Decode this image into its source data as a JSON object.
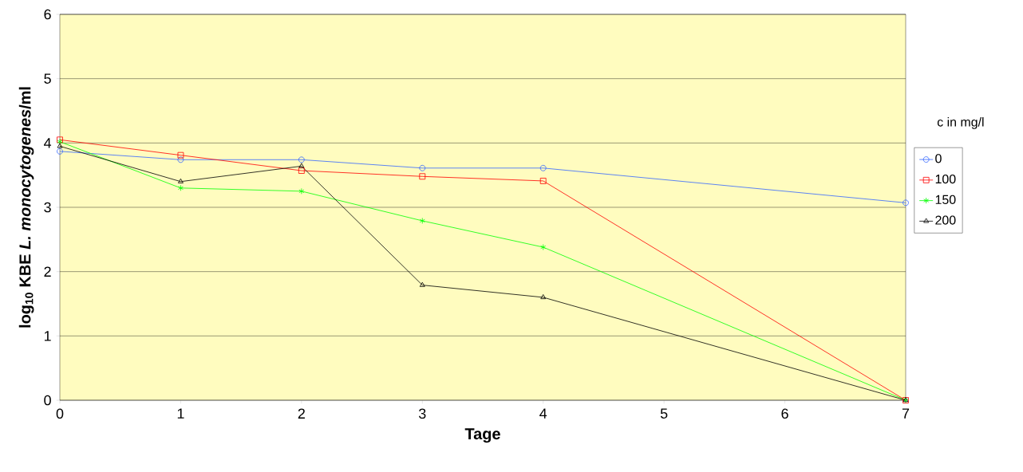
{
  "chart_data": {
    "type": "line",
    "xlabel": "Tage",
    "ylabel": "log$_{10}$ KBE *L. monocytogenes*/ml",
    "legend_title": "c in mg/l",
    "x": [
      0,
      1,
      2,
      3,
      4,
      7
    ],
    "series": [
      {
        "name": "0",
        "color": "#3366ff",
        "marker": "circle",
        "values": [
          3.87,
          3.74,
          3.74,
          3.61,
          3.61,
          3.07
        ]
      },
      {
        "name": "100",
        "color": "#ff0000",
        "marker": "square",
        "values": [
          4.05,
          3.81,
          3.57,
          3.48,
          3.41,
          0
        ]
      },
      {
        "name": "150",
        "color": "#00ff00",
        "marker": "cross",
        "values": [
          4.02,
          3.3,
          3.25,
          2.79,
          2.38,
          0
        ]
      },
      {
        "name": "200",
        "color": "#000000",
        "marker": "triangle",
        "values": [
          3.95,
          3.4,
          3.64,
          1.79,
          1.6,
          0
        ]
      }
    ],
    "xlim": [
      0,
      7
    ],
    "xticks": [
      0,
      1,
      2,
      3,
      4,
      5,
      6,
      7
    ],
    "ylim": [
      0,
      6
    ],
    "yticks": [
      0,
      1,
      2,
      3,
      4,
      5,
      6
    ],
    "grid": "y",
    "legend": "right",
    "line_style": "solid"
  }
}
